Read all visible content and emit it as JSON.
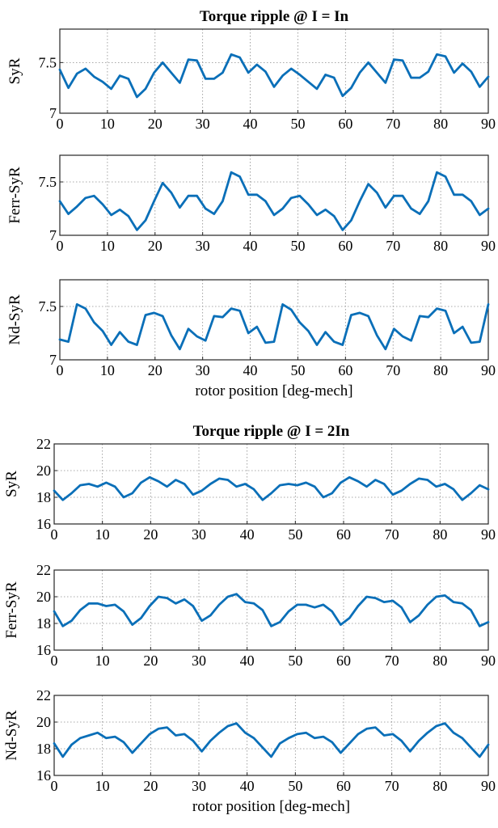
{
  "chart_data": [
    {
      "type": "line",
      "title": "Torque ripple @ I = In",
      "xlabel": "",
      "ylabel": "SyR",
      "xlim": [
        0,
        90
      ],
      "ylim": [
        7,
        7.83
      ],
      "xticks": [
        0,
        10,
        20,
        30,
        40,
        50,
        60,
        70,
        80,
        90
      ],
      "yticks": [
        7,
        7.5
      ],
      "grid": true,
      "x": [
        0,
        1.8,
        3.6,
        5.4,
        7.2,
        9,
        10.8,
        12.6,
        14.4,
        16.2,
        18,
        19.8,
        21.6,
        23.4,
        25.2,
        27,
        28.8,
        30.6,
        32.4,
        34.2,
        36,
        37.8,
        39.6,
        41.4,
        43.2,
        45,
        46.8,
        48.6,
        50.4,
        52.2,
        54,
        55.8,
        57.6,
        59.4,
        61.2,
        63,
        64.8,
        66.6,
        68.4,
        70.2,
        72,
        73.8,
        75.6,
        77.4,
        79.2,
        81,
        82.8,
        84.6,
        86.4,
        88.2,
        90
      ],
      "series": [
        {
          "values": [
            7.43,
            7.25,
            7.39,
            7.44,
            7.36,
            7.31,
            7.24,
            7.37,
            7.34,
            7.16,
            7.24,
            7.4,
            7.5,
            7.4,
            7.3,
            7.53,
            7.52,
            7.34,
            7.34,
            7.4,
            7.58,
            7.55,
            7.4,
            7.48,
            7.41,
            7.26,
            7.37,
            7.44,
            7.38,
            7.31,
            7.24,
            7.38,
            7.35,
            7.17,
            7.25,
            7.4,
            7.5,
            7.4,
            7.3,
            7.53,
            7.52,
            7.35,
            7.35,
            7.41,
            7.58,
            7.56,
            7.4,
            7.49,
            7.41,
            7.26,
            7.36
          ]
        }
      ]
    },
    {
      "type": "line",
      "ylabel": "Ferr-SyR",
      "xlim": [
        0,
        90
      ],
      "ylim": [
        7,
        7.75
      ],
      "xticks": [
        0,
        10,
        20,
        30,
        40,
        50,
        60,
        70,
        80,
        90
      ],
      "yticks": [
        7,
        7.5
      ],
      "grid": true,
      "x": [
        0,
        1.8,
        3.6,
        5.4,
        7.2,
        9,
        10.8,
        12.6,
        14.4,
        16.2,
        18,
        19.8,
        21.6,
        23.4,
        25.2,
        27,
        28.8,
        30.6,
        32.4,
        34.2,
        36,
        37.8,
        39.6,
        41.4,
        43.2,
        45,
        46.8,
        48.6,
        50.4,
        52.2,
        54,
        55.8,
        57.6,
        59.4,
        61.2,
        63,
        64.8,
        66.6,
        68.4,
        70.2,
        72,
        73.8,
        75.6,
        77.4,
        79.2,
        81,
        82.8,
        84.6,
        86.4,
        88.2,
        90
      ],
      "series": [
        {
          "values": [
            7.32,
            7.2,
            7.27,
            7.35,
            7.37,
            7.29,
            7.19,
            7.24,
            7.18,
            7.05,
            7.14,
            7.32,
            7.49,
            7.4,
            7.26,
            7.37,
            7.37,
            7.25,
            7.2,
            7.32,
            7.59,
            7.55,
            7.38,
            7.38,
            7.32,
            7.19,
            7.25,
            7.35,
            7.37,
            7.29,
            7.19,
            7.24,
            7.18,
            7.05,
            7.14,
            7.32,
            7.48,
            7.4,
            7.26,
            7.37,
            7.37,
            7.25,
            7.2,
            7.32,
            7.59,
            7.55,
            7.38,
            7.38,
            7.32,
            7.19,
            7.25
          ]
        }
      ]
    },
    {
      "type": "line",
      "ylabel": "Nd-SyR",
      "xlabel": "rotor position [deg-mech]",
      "xlim": [
        0,
        90
      ],
      "ylim": [
        7,
        7.75
      ],
      "xticks": [
        0,
        10,
        20,
        30,
        40,
        50,
        60,
        70,
        80,
        90
      ],
      "yticks": [
        7,
        7.5
      ],
      "grid": true,
      "x": [
        0,
        1.8,
        3.6,
        5.4,
        7.2,
        9,
        10.8,
        12.6,
        14.4,
        16.2,
        18,
        19.8,
        21.6,
        23.4,
        25.2,
        27,
        28.8,
        30.6,
        32.4,
        34.2,
        36,
        37.8,
        39.6,
        41.4,
        43.2,
        45,
        46.8,
        48.6,
        50.4,
        52.2,
        54,
        55.8,
        57.6,
        59.4,
        61.2,
        63,
        64.8,
        66.6,
        68.4,
        70.2,
        72,
        73.8,
        75.6,
        77.4,
        79.2,
        81,
        82.8,
        84.6,
        86.4,
        88.2,
        90
      ],
      "series": [
        {
          "values": [
            7.19,
            7.17,
            7.52,
            7.48,
            7.35,
            7.27,
            7.14,
            7.26,
            7.17,
            7.14,
            7.42,
            7.44,
            7.41,
            7.23,
            7.1,
            7.29,
            7.22,
            7.18,
            7.41,
            7.4,
            7.48,
            7.46,
            7.25,
            7.31,
            7.16,
            7.17,
            7.52,
            7.47,
            7.35,
            7.27,
            7.14,
            7.26,
            7.17,
            7.14,
            7.42,
            7.44,
            7.41,
            7.23,
            7.1,
            7.29,
            7.22,
            7.18,
            7.41,
            7.4,
            7.48,
            7.46,
            7.25,
            7.31,
            7.16,
            7.17,
            7.52
          ]
        }
      ]
    },
    {
      "type": "line",
      "title": "Torque ripple @ I = 2In",
      "ylabel": "SyR",
      "xlim": [
        0,
        90
      ],
      "ylim": [
        16,
        22
      ],
      "xticks": [
        0,
        10,
        20,
        30,
        40,
        50,
        60,
        70,
        80,
        90
      ],
      "yticks": [
        16,
        18,
        20,
        22
      ],
      "grid": true,
      "x": [
        0,
        1.8,
        3.6,
        5.4,
        7.2,
        9,
        10.8,
        12.6,
        14.4,
        16.2,
        18,
        19.8,
        21.6,
        23.4,
        25.2,
        27,
        28.8,
        30.6,
        32.4,
        34.2,
        36,
        37.8,
        39.6,
        41.4,
        43.2,
        45,
        46.8,
        48.6,
        50.4,
        52.2,
        54,
        55.8,
        57.6,
        59.4,
        61.2,
        63,
        64.8,
        66.6,
        68.4,
        70.2,
        72,
        73.8,
        75.6,
        77.4,
        79.2,
        81,
        82.8,
        84.6,
        86.4,
        88.2,
        90
      ],
      "series": [
        {
          "values": [
            18.5,
            17.8,
            18.3,
            18.9,
            19.0,
            18.8,
            19.1,
            18.8,
            18.0,
            18.3,
            19.1,
            19.5,
            19.2,
            18.8,
            19.3,
            19.0,
            18.2,
            18.5,
            19.0,
            19.4,
            19.3,
            18.8,
            19.0,
            18.6,
            17.8,
            18.3,
            18.9,
            19.0,
            18.9,
            19.1,
            18.8,
            18.0,
            18.3,
            19.1,
            19.5,
            19.2,
            18.8,
            19.3,
            19.0,
            18.2,
            18.5,
            19.0,
            19.4,
            19.3,
            18.8,
            19.0,
            18.6,
            17.8,
            18.3,
            18.9,
            18.6
          ]
        }
      ]
    },
    {
      "type": "line",
      "ylabel": "Ferr-SyR",
      "xlim": [
        0,
        90
      ],
      "ylim": [
        16,
        22
      ],
      "xticks": [
        0,
        10,
        20,
        30,
        40,
        50,
        60,
        70,
        80,
        90
      ],
      "yticks": [
        16,
        18,
        20,
        22
      ],
      "grid": true,
      "x": [
        0,
        1.8,
        3.6,
        5.4,
        7.2,
        9,
        10.8,
        12.6,
        14.4,
        16.2,
        18,
        19.8,
        21.6,
        23.4,
        25.2,
        27,
        28.8,
        30.6,
        32.4,
        34.2,
        36,
        37.8,
        39.6,
        41.4,
        43.2,
        45,
        46.8,
        48.6,
        50.4,
        52.2,
        54,
        55.8,
        57.6,
        59.4,
        61.2,
        63,
        64.8,
        66.6,
        68.4,
        70.2,
        72,
        73.8,
        75.6,
        77.4,
        79.2,
        81,
        82.8,
        84.6,
        86.4,
        88.2,
        90
      ],
      "series": [
        {
          "values": [
            18.9,
            17.8,
            18.2,
            19.0,
            19.5,
            19.5,
            19.3,
            19.4,
            18.9,
            17.9,
            18.4,
            19.3,
            20.0,
            19.9,
            19.5,
            19.8,
            19.3,
            18.2,
            18.6,
            19.4,
            20.0,
            20.2,
            19.6,
            19.5,
            19.0,
            17.8,
            18.1,
            18.9,
            19.4,
            19.4,
            19.2,
            19.4,
            18.9,
            17.9,
            18.4,
            19.3,
            20.0,
            19.9,
            19.6,
            19.7,
            19.2,
            18.1,
            18.6,
            19.4,
            20.0,
            20.1,
            19.6,
            19.5,
            19.0,
            17.8,
            18.1
          ]
        }
      ]
    },
    {
      "type": "line",
      "ylabel": "Nd-SyR",
      "xlabel": "rotor position [deg-mech]",
      "xlim": [
        0,
        90
      ],
      "ylim": [
        16,
        22
      ],
      "xticks": [
        0,
        10,
        20,
        30,
        40,
        50,
        60,
        70,
        80,
        90
      ],
      "yticks": [
        16,
        18,
        20,
        22
      ],
      "grid": true,
      "x": [
        0,
        1.8,
        3.6,
        5.4,
        7.2,
        9,
        10.8,
        12.6,
        14.4,
        16.2,
        18,
        19.8,
        21.6,
        23.4,
        25.2,
        27,
        28.8,
        30.6,
        32.4,
        34.2,
        36,
        37.8,
        39.6,
        41.4,
        43.2,
        45,
        46.8,
        48.6,
        50.4,
        52.2,
        54,
        55.8,
        57.6,
        59.4,
        61.2,
        63,
        64.8,
        66.6,
        68.4,
        70.2,
        72,
        73.8,
        75.6,
        77.4,
        79.2,
        81,
        82.8,
        84.6,
        86.4,
        88.2,
        90
      ],
      "series": [
        {
          "values": [
            18.4,
            17.4,
            18.3,
            18.8,
            19.0,
            19.2,
            18.8,
            18.9,
            18.5,
            17.7,
            18.4,
            19.1,
            19.5,
            19.6,
            19.0,
            19.1,
            18.6,
            17.8,
            18.6,
            19.2,
            19.7,
            19.9,
            19.2,
            18.8,
            18.1,
            17.4,
            18.4,
            18.8,
            19.1,
            19.2,
            18.8,
            18.9,
            18.5,
            17.7,
            18.4,
            19.1,
            19.5,
            19.6,
            19.0,
            19.1,
            18.6,
            17.8,
            18.6,
            19.2,
            19.7,
            19.9,
            19.2,
            18.8,
            18.1,
            17.4,
            18.3
          ]
        }
      ]
    }
  ]
}
